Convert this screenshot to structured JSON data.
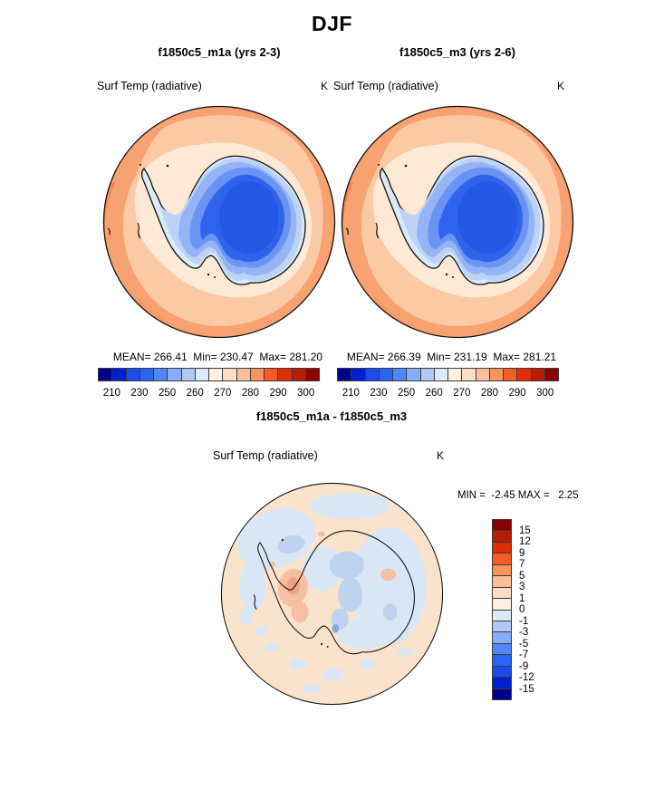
{
  "figure": {
    "title": "DJF"
  },
  "panels": {
    "left": {
      "title": "f1850c5_m1a (yrs 2-3)",
      "subtitle": "Surf Temp (radiative)",
      "unit": "K",
      "stats": "MEAN= 266.41  Min= 230.47  Max= 281.20"
    },
    "right": {
      "title": "f1850c5_m3 (yrs 2-6)",
      "subtitle": "Surf Temp (radiative)",
      "unit": "K",
      "stats": "MEAN= 266.39  Min= 231.19  Max= 281.21"
    },
    "diff": {
      "title": "f1850c5_m1a - f1850c5_m3",
      "subtitle": "Surf Temp (radiative)",
      "unit": "K",
      "stats": "MIN =  -2.45 MAX =   2.25"
    }
  },
  "colorbars": {
    "absolute": {
      "orientation": "horizontal",
      "colors": [
        "#00008B",
        "#0020CE",
        "#1B4AEE",
        "#2B64F4",
        "#4F87FA",
        "#86ACFB",
        "#B0C9F3",
        "#DCE9F8",
        "#FDEFE2",
        "#FBDCC5",
        "#FABF9A",
        "#F9945F",
        "#F75B27",
        "#DE2D08",
        "#B81C06",
        "#8B0000"
      ],
      "tick_labels": [
        "210",
        "230",
        "250",
        "260",
        "270",
        "280",
        "290",
        "300"
      ],
      "tick_boundaries": [
        1,
        3,
        5,
        7,
        9,
        11,
        13,
        15
      ]
    },
    "difference": {
      "orientation": "vertical",
      "colors": [
        "#8B0000",
        "#B81C06",
        "#DE2D08",
        "#F75B27",
        "#F9945F",
        "#FABF9A",
        "#FBDCC5",
        "#FDEFE2",
        "#DCE9F8",
        "#B0C9F3",
        "#86ACFB",
        "#4F87FA",
        "#2B64F4",
        "#1B4AEE",
        "#0020CE",
        "#00008B"
      ],
      "tick_labels": [
        "15",
        "12",
        "9",
        "7",
        "5",
        "3",
        "1",
        "0",
        "-1",
        "-3",
        "-5",
        "-7",
        "-9",
        "-12",
        "-15"
      ]
    }
  },
  "chart_data": [
    {
      "type": "heatmap",
      "subtype": "south-polar-stereographic-contour-map",
      "season": "DJF",
      "title": "f1850c5_m1a (yrs 2-3)",
      "variable": "Surf Temp (radiative)",
      "units": "K",
      "stats": {
        "mean": 266.41,
        "min": 230.47,
        "max": 281.2
      },
      "contour_levels": [
        210,
        220,
        230,
        240,
        250,
        255,
        260,
        265,
        270,
        275,
        280,
        285,
        290,
        295,
        300
      ],
      "labeled_levels": [
        210,
        230,
        250,
        260,
        270,
        280,
        290,
        300
      ],
      "palette": [
        "#00008B",
        "#0020CE",
        "#1B4AEE",
        "#2B64F4",
        "#4F87FA",
        "#86ACFB",
        "#B0C9F3",
        "#DCE9F8",
        "#FDEFE2",
        "#FBDCC5",
        "#FABF9A",
        "#F9945F",
        "#F75B27",
        "#DE2D08",
        "#B81C06",
        "#8B0000"
      ],
      "legend_position": "below",
      "description": "Antarctica interior 210-255 K (blues), Southern Ocean 270-285 K (oranges)"
    },
    {
      "type": "heatmap",
      "subtype": "south-polar-stereographic-contour-map",
      "season": "DJF",
      "title": "f1850c5_m3 (yrs 2-6)",
      "variable": "Surf Temp (radiative)",
      "units": "K",
      "stats": {
        "mean": 266.39,
        "min": 231.19,
        "max": 281.21
      },
      "contour_levels": [
        210,
        220,
        230,
        240,
        250,
        255,
        260,
        265,
        270,
        275,
        280,
        285,
        290,
        295,
        300
      ],
      "labeled_levels": [
        210,
        230,
        250,
        260,
        270,
        280,
        290,
        300
      ],
      "palette": [
        "#00008B",
        "#0020CE",
        "#1B4AEE",
        "#2B64F4",
        "#4F87FA",
        "#86ACFB",
        "#B0C9F3",
        "#DCE9F8",
        "#FDEFE2",
        "#FBDCC5",
        "#FABF9A",
        "#F9945F",
        "#F75B27",
        "#DE2D08",
        "#B81C06",
        "#8B0000"
      ],
      "legend_position": "below",
      "description": "Nearly identical to m1a panel"
    },
    {
      "type": "heatmap",
      "subtype": "south-polar-stereographic-contour-map",
      "season": "DJF",
      "title": "f1850c5_m1a - f1850c5_m3",
      "variable": "Surf Temp (radiative)",
      "units": "K",
      "stats": {
        "min": -2.45,
        "max": 2.25
      },
      "contour_levels": [
        -15,
        -12,
        -9,
        -7,
        -5,
        -3,
        -1,
        0,
        1,
        3,
        5,
        7,
        9,
        12,
        15
      ],
      "labeled_levels": [
        15,
        12,
        9,
        7,
        5,
        3,
        1,
        0,
        -1,
        -3,
        -5,
        -7,
        -9,
        -12,
        -15
      ],
      "palette": [
        "#8B0000",
        "#B81C06",
        "#DE2D08",
        "#F75B27",
        "#F9945F",
        "#FABF9A",
        "#FBDCC5",
        "#FDEFE2",
        "#DCE9F8",
        "#B0C9F3",
        "#86ACFB",
        "#4F87FA",
        "#2B64F4",
        "#1B4AEE",
        "#0020CE",
        "#00008B"
      ],
      "legend_position": "right",
      "description": "Differences mostly between -1 and +1 K; small warm patch over West Antarctica, cool patches over East Antarctica and NW ocean"
    }
  ]
}
